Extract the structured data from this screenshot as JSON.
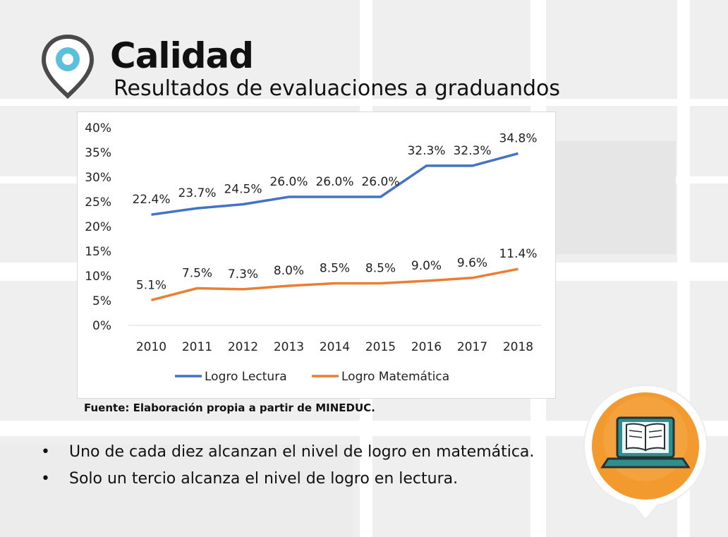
{
  "header": {
    "title": "Calidad",
    "subtitle": "Resultados de evaluaciones a graduandos"
  },
  "chart_data": {
    "type": "line",
    "categories": [
      "2010",
      "2011",
      "2012",
      "2013",
      "2014",
      "2015",
      "2016",
      "2017",
      "2018"
    ],
    "series": [
      {
        "name": "Logro Lectura",
        "color": "#4472c4",
        "values": [
          22.4,
          23.7,
          24.5,
          26.0,
          26.0,
          26.0,
          32.3,
          32.3,
          34.8
        ],
        "labels": [
          "22.4%",
          "23.7%",
          "24.5%",
          "26.0%",
          "26.0%",
          "26.0%",
          "32.3%",
          "32.3%",
          "34.8%"
        ]
      },
      {
        "name": "Logro Matemática",
        "color": "#ed7d31",
        "values": [
          5.1,
          7.5,
          7.3,
          8.0,
          8.5,
          8.5,
          9.0,
          9.6,
          11.4
        ],
        "labels": [
          "5.1%",
          "7.5%",
          "7.3%",
          "8.0%",
          "8.5%",
          "8.5%",
          "9.0%",
          "9.6%",
          "11.4%"
        ]
      }
    ],
    "ylim": [
      0,
      40
    ],
    "yticks": [
      0,
      5,
      10,
      15,
      20,
      25,
      30,
      35,
      40
    ],
    "ytick_labels": [
      "0%",
      "5%",
      "10%",
      "15%",
      "20%",
      "25%",
      "30%",
      "35%",
      "40%"
    ],
    "legend": "bottom",
    "grid": false
  },
  "source": "Fuente: Elaboración propia a partir de MINEDUC.",
  "bullets": [
    "Uno de cada diez alcanzan el nivel de logro en matemática.",
    "Solo un tercio alcanza el nivel de logro en lectura."
  ],
  "bullet_symbol": "•",
  "icons": {
    "pin": "location-pin-icon",
    "laptop": "laptop-book-icon"
  },
  "colors": {
    "pin_ring": "#4a4a4a",
    "pin_center": "#5bc0de",
    "badge_orange": "#f39a2e",
    "laptop_teal": "#2f8f8a"
  }
}
